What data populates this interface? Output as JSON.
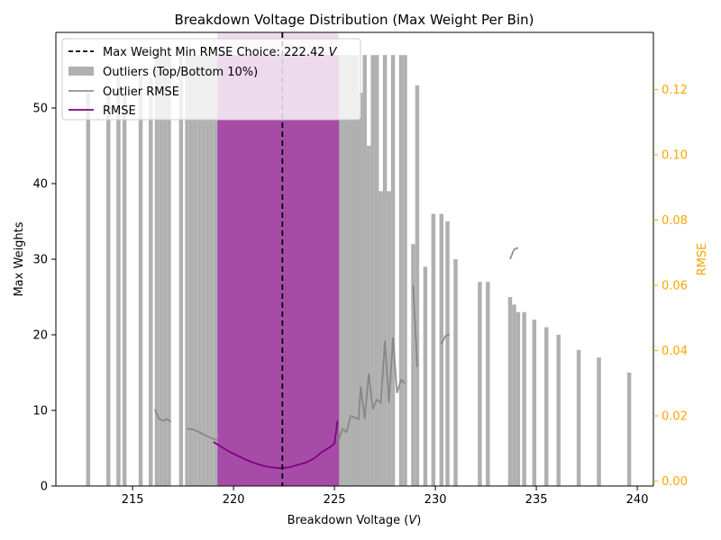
{
  "chart_data": {
    "type": "bar",
    "title": "Breakdown Voltage Distribution (Max Weight Per Bin)",
    "xlabel": "Breakdown Voltage (",
    "xlabel_unit": "V",
    "xlabel_close": ")",
    "ylabel": "Max Weights",
    "ylabel_right": "RMSE",
    "xlim": [
      211.2,
      240.8
    ],
    "ylim": [
      0,
      60
    ],
    "ylim_right": [
      -0.0015,
      0.1375
    ],
    "xticks": [
      215,
      220,
      225,
      230,
      235,
      240
    ],
    "yticks": [
      0,
      10,
      20,
      30,
      40,
      50
    ],
    "yticks_right": [
      0.0,
      0.02,
      0.04,
      0.06,
      0.08,
      0.1,
      0.12
    ],
    "yticks_right_labels": [
      "0.00",
      "0.02",
      "0.04",
      "0.06",
      "0.08",
      "0.10",
      "0.12"
    ],
    "colors": {
      "outlier_bars": "#b0b0b0",
      "main_bars": "#a64ca6",
      "rmse": "#800080",
      "outlier_rmse": "#808080",
      "choice_line": "#000000",
      "right_axis": "#ffa500",
      "span": "#e8cfe8"
    },
    "choice_line": {
      "x": 222.42
    },
    "highlight_span": [
      219.2,
      225.2
    ],
    "bar_width": 0.2,
    "outlier_bars": [
      {
        "x": 212.8,
        "y": 52
      },
      {
        "x": 213.8,
        "y": 52
      },
      {
        "x": 214.3,
        "y": 54
      },
      {
        "x": 214.6,
        "y": 52
      },
      {
        "x": 215.4,
        "y": 55
      },
      {
        "x": 215.9,
        "y": 54
      },
      {
        "x": 216.2,
        "y": 57
      },
      {
        "x": 216.4,
        "y": 57
      },
      {
        "x": 216.6,
        "y": 57
      },
      {
        "x": 216.8,
        "y": 57
      },
      {
        "x": 217.4,
        "y": 57
      },
      {
        "x": 217.7,
        "y": 57
      },
      {
        "x": 217.9,
        "y": 57
      },
      {
        "x": 218.1,
        "y": 57
      },
      {
        "x": 218.3,
        "y": 57
      },
      {
        "x": 218.5,
        "y": 57
      },
      {
        "x": 218.7,
        "y": 57
      },
      {
        "x": 218.9,
        "y": 57
      },
      {
        "x": 219.1,
        "y": 57
      },
      {
        "x": 225.3,
        "y": 57
      },
      {
        "x": 225.5,
        "y": 57
      },
      {
        "x": 225.7,
        "y": 57
      },
      {
        "x": 225.9,
        "y": 57
      },
      {
        "x": 226.1,
        "y": 57
      },
      {
        "x": 226.3,
        "y": 52
      },
      {
        "x": 226.5,
        "y": 57
      },
      {
        "x": 226.7,
        "y": 45
      },
      {
        "x": 226.9,
        "y": 57
      },
      {
        "x": 227.1,
        "y": 57
      },
      {
        "x": 227.3,
        "y": 39
      },
      {
        "x": 227.5,
        "y": 57
      },
      {
        "x": 227.7,
        "y": 39
      },
      {
        "x": 227.9,
        "y": 57
      },
      {
        "x": 228.3,
        "y": 57
      },
      {
        "x": 228.5,
        "y": 57
      },
      {
        "x": 228.9,
        "y": 32
      },
      {
        "x": 229.1,
        "y": 53
      },
      {
        "x": 229.5,
        "y": 29
      },
      {
        "x": 229.9,
        "y": 36
      },
      {
        "x": 230.3,
        "y": 36
      },
      {
        "x": 230.6,
        "y": 35
      },
      {
        "x": 231.0,
        "y": 30
      },
      {
        "x": 232.2,
        "y": 27
      },
      {
        "x": 232.6,
        "y": 27
      },
      {
        "x": 233.7,
        "y": 25
      },
      {
        "x": 233.9,
        "y": 24
      },
      {
        "x": 234.1,
        "y": 23
      },
      {
        "x": 234.4,
        "y": 23
      },
      {
        "x": 234.9,
        "y": 22
      },
      {
        "x": 235.5,
        "y": 21
      },
      {
        "x": 236.1,
        "y": 20
      },
      {
        "x": 237.1,
        "y": 18
      },
      {
        "x": 238.1,
        "y": 17
      },
      {
        "x": 239.6,
        "y": 15
      }
    ],
    "main_bars": [
      {
        "x": 219.3,
        "y": 57
      },
      {
        "x": 219.5,
        "y": 57
      },
      {
        "x": 219.7,
        "y": 57
      },
      {
        "x": 219.9,
        "y": 57
      },
      {
        "x": 220.1,
        "y": 57
      },
      {
        "x": 220.3,
        "y": 57
      },
      {
        "x": 220.5,
        "y": 57
      },
      {
        "x": 220.7,
        "y": 57
      },
      {
        "x": 220.9,
        "y": 57
      },
      {
        "x": 221.1,
        "y": 57
      },
      {
        "x": 221.3,
        "y": 57
      },
      {
        "x": 221.5,
        "y": 57
      },
      {
        "x": 221.7,
        "y": 57
      },
      {
        "x": 221.9,
        "y": 57
      },
      {
        "x": 222.1,
        "y": 57
      },
      {
        "x": 222.3,
        "y": 57
      },
      {
        "x": 222.5,
        "y": 57
      },
      {
        "x": 222.7,
        "y": 57
      },
      {
        "x": 222.9,
        "y": 57
      },
      {
        "x": 223.1,
        "y": 57
      },
      {
        "x": 223.3,
        "y": 57
      },
      {
        "x": 223.5,
        "y": 57
      },
      {
        "x": 223.7,
        "y": 57
      },
      {
        "x": 223.9,
        "y": 57
      },
      {
        "x": 224.1,
        "y": 57
      },
      {
        "x": 224.3,
        "y": 57
      },
      {
        "x": 224.5,
        "y": 57
      },
      {
        "x": 224.7,
        "y": 57
      },
      {
        "x": 224.9,
        "y": 57
      },
      {
        "x": 225.1,
        "y": 57
      }
    ],
    "rmse": {
      "x": [
        219.0,
        219.4,
        219.8,
        220.2,
        220.6,
        221.0,
        221.4,
        221.8,
        222.2,
        222.42,
        222.8,
        223.2,
        223.6,
        224.0,
        224.4,
        224.8,
        225.0,
        225.15
      ],
      "y": [
        0.012,
        0.0105,
        0.009,
        0.0078,
        0.0066,
        0.0056,
        0.0048,
        0.0043,
        0.004,
        0.004,
        0.0043,
        0.005,
        0.0057,
        0.007,
        0.009,
        0.0105,
        0.0115,
        0.0185
      ]
    },
    "outlier_rmse": [
      {
        "x": [
          216.1,
          216.3,
          216.5,
          216.7,
          216.9
        ],
        "y": [
          0.022,
          0.0192,
          0.0185,
          0.019,
          0.0182
        ]
      },
      {
        "x": [
          217.7,
          218.0,
          218.3,
          218.6,
          218.9,
          219.2
        ],
        "y": [
          0.016,
          0.0158,
          0.015,
          0.014,
          0.0132,
          0.0125
        ]
      },
      {
        "x": [
          225.0,
          225.2,
          225.4,
          225.6,
          225.8,
          226.0,
          226.2,
          226.3,
          226.5,
          226.7,
          226.9,
          227.1,
          227.3,
          227.5,
          227.7,
          227.9,
          228.1,
          228.3,
          228.5
        ],
        "y": [
          0.0155,
          0.0125,
          0.016,
          0.015,
          0.02,
          0.0195,
          0.019,
          0.029,
          0.019,
          0.033,
          0.022,
          0.025,
          0.024,
          0.043,
          0.024,
          0.044,
          0.027,
          0.031,
          0.03
        ]
      },
      {
        "x": [
          228.9,
          229.1
        ],
        "y": [
          0.06,
          0.035
        ]
      },
      {
        "x": [
          230.3,
          230.5,
          230.7
        ],
        "y": [
          0.042,
          0.0445,
          0.045
        ]
      },
      {
        "x": [
          233.7,
          233.9,
          234.1
        ],
        "y": [
          0.068,
          0.071,
          0.0715
        ]
      }
    ],
    "legend": {
      "placement": "top-left",
      "entries": [
        {
          "kind": "dashed-line",
          "label": "Max Weight Min RMSE Choice: 222.42 ",
          "label_unit": "V"
        },
        {
          "kind": "patch",
          "label": "Outliers (Top/Bottom 10%)"
        },
        {
          "kind": "line-gray",
          "label": "Outlier RMSE"
        },
        {
          "kind": "line-purple",
          "label": "RMSE"
        }
      ]
    }
  }
}
